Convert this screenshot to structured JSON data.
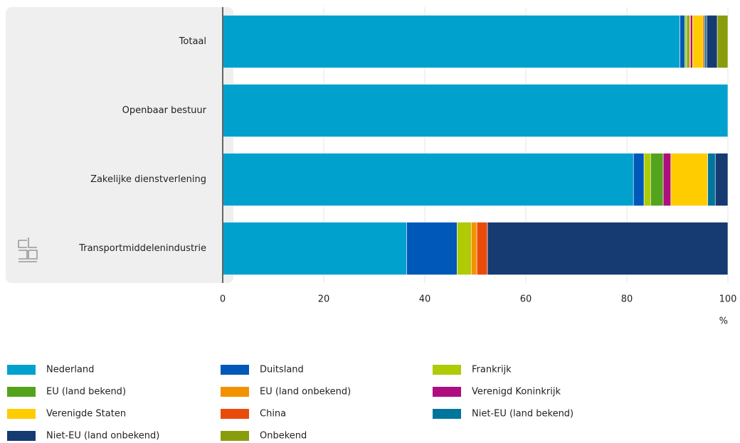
{
  "chart_data": {
    "type": "stacked-barh",
    "categories": [
      "Totaal",
      "Openbaar bestuur",
      "Zakelijke dienstverlening",
      "Transportmiddelenindustrie"
    ],
    "series": [
      {
        "name": "Nederland",
        "color": "#00a1cd",
        "values": [
          90.5,
          100,
          81.3,
          36.4
        ]
      },
      {
        "name": "Duitsland",
        "color": "#0058b8",
        "values": [
          1.0,
          0,
          2.1,
          10.0
        ]
      },
      {
        "name": "Frankrijk",
        "color": "#afcb05",
        "values": [
          0.4,
          0,
          1.3,
          2.8
        ]
      },
      {
        "name": "EU (land bekend)",
        "color": "#53a31d",
        "values": [
          0.4,
          0,
          2.5,
          0
        ]
      },
      {
        "name": "EU (land onbekend)",
        "color": "#f39200",
        "values": [
          0.3,
          0,
          0,
          1.1
        ]
      },
      {
        "name": "Verenigd Koninkrijk",
        "color": "#af0e80",
        "values": [
          0.4,
          0,
          1.5,
          0
        ]
      },
      {
        "name": "Verenigde Staten",
        "color": "#ffcc00",
        "values": [
          2.1,
          0,
          7.3,
          0
        ]
      },
      {
        "name": "China",
        "color": "#e94c0a",
        "values": [
          0.3,
          0,
          0,
          2.1
        ]
      },
      {
        "name": "Niet-EU (land bekend)",
        "color": "#00769d",
        "values": [
          0.4,
          0,
          1.5,
          0
        ]
      },
      {
        "name": "Niet-EU (land onbekend)",
        "color": "#163a72",
        "values": [
          2.1,
          0,
          2.5,
          47.6
        ]
      },
      {
        "name": "Onbekend",
        "color": "#899d0c",
        "values": [
          2.1,
          0,
          0,
          0
        ]
      }
    ],
    "xlim": [
      0,
      100
    ],
    "xticks": [
      0,
      20,
      40,
      60,
      80,
      100
    ],
    "xlabel": "%",
    "grid": true
  }
}
